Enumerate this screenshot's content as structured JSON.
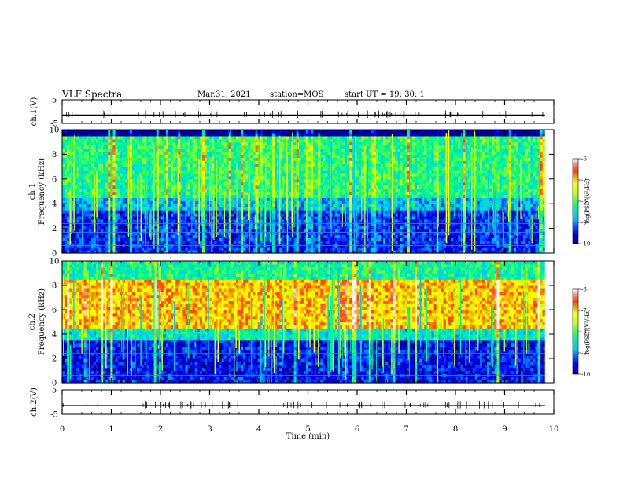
{
  "header": {
    "title": "VLF Spectra",
    "date": "Mar.31, 2021",
    "station": "station=MOS",
    "start": "start  UT =   19: 30: 1"
  },
  "chart_data": [
    {
      "type": "line",
      "name": "ch1-waveform",
      "ylabel": "ch.1(V)",
      "ylim": [
        -5,
        5
      ],
      "yticks": [
        5,
        -5
      ],
      "series": [
        {
          "name": "ch.1",
          "values": [
            -1.5,
            -1.5
          ]
        }
      ],
      "xlim": [
        0,
        10
      ]
    },
    {
      "type": "heatmap",
      "name": "ch1-spectrogram",
      "ylabel": "ch.1\nFrequency (kHz)",
      "ylim": [
        0,
        10
      ],
      "yticks": [
        0,
        2,
        4,
        6,
        8,
        10
      ],
      "xlim": [
        0,
        10
      ],
      "bands_khz": [
        {
          "from": 0,
          "to": 3.5,
          "level": -9.4
        },
        {
          "from": 3.5,
          "to": 4.5,
          "level": -8.8
        },
        {
          "from": 4.5,
          "to": 9.5,
          "level": -8.2
        },
        {
          "from": 9.5,
          "to": 10,
          "level": -10
        }
      ],
      "colorbar": {
        "label": "log(PSD)(V²/Hz)",
        "ticks": [
          -6,
          -7,
          -8,
          -9,
          -10
        ]
      }
    },
    {
      "type": "heatmap",
      "name": "ch2-spectrogram",
      "ylabel": "ch.2\nFrequency (kHz)",
      "ylim": [
        0,
        10
      ],
      "yticks": [
        0,
        2,
        4,
        6,
        8,
        10
      ],
      "xlim": [
        0,
        10
      ],
      "bands_khz": [
        {
          "from": 0,
          "to": 3.5,
          "level": -9.5
        },
        {
          "from": 3.5,
          "to": 4.5,
          "level": -8.5
        },
        {
          "from": 4.5,
          "to": 8.5,
          "level": -7.0
        },
        {
          "from": 8.5,
          "to": 10,
          "level": -8.3
        }
      ],
      "colorbar": {
        "label": "log(PSD)(V²/Hz)",
        "ticks": [
          -6,
          -7,
          -8,
          -9,
          -10
        ]
      }
    },
    {
      "type": "line",
      "name": "ch2-waveform",
      "ylabel": "ch.2(V)",
      "ylim": [
        -5,
        5
      ],
      "yticks": [
        5,
        -5
      ],
      "series": [
        {
          "name": "ch.2",
          "values": [
            -1.5,
            -1.5
          ]
        }
      ],
      "xlim": [
        0,
        10
      ],
      "xlabel": "Time  (min)",
      "xticks": [
        0,
        1,
        2,
        3,
        4,
        5,
        6,
        7,
        8,
        9,
        10
      ]
    }
  ]
}
